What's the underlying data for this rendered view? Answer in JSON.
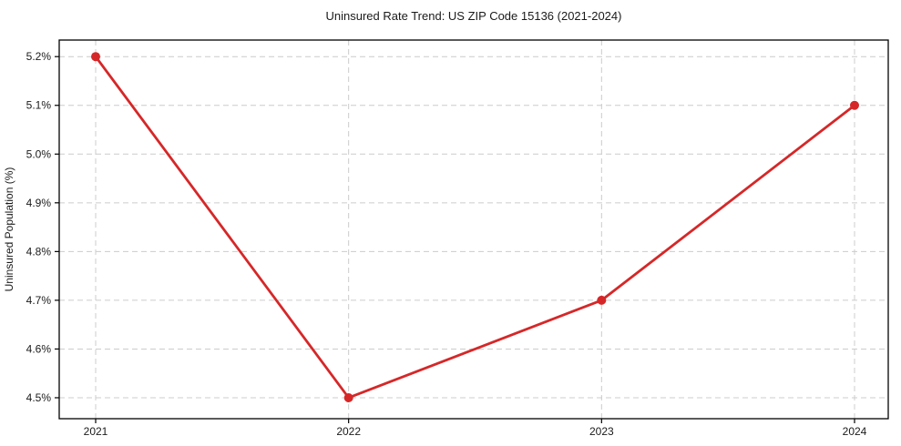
{
  "figure": {
    "background": "#ffffff"
  },
  "chart_data": {
    "type": "line",
    "title": "Uninsured Rate Trend: US ZIP Code 15136 (2021-2024)",
    "xlabel": "",
    "ylabel": "Uninsured Population (%)",
    "categories": [
      "2021",
      "2022",
      "2023",
      "2024"
    ],
    "values": [
      5.2,
      4.5,
      4.7,
      5.1
    ],
    "ylim": [
      4.457,
      5.234
    ],
    "yticks": [
      4.5,
      4.6,
      4.7,
      4.8,
      4.9,
      5.0,
      5.1,
      5.2
    ],
    "ytick_labels": [
      "4.5%",
      "4.6%",
      "4.7%",
      "4.8%",
      "4.9%",
      "5.0%",
      "5.1%",
      "5.2%"
    ],
    "grid": true,
    "grid_style": "dashed",
    "legend": false,
    "marker": "circle",
    "colors": {
      "line": "#d62728",
      "marker": "#d62728",
      "grid": "#cccccc",
      "axis": "#000000",
      "text": "#1a1a1a"
    }
  }
}
